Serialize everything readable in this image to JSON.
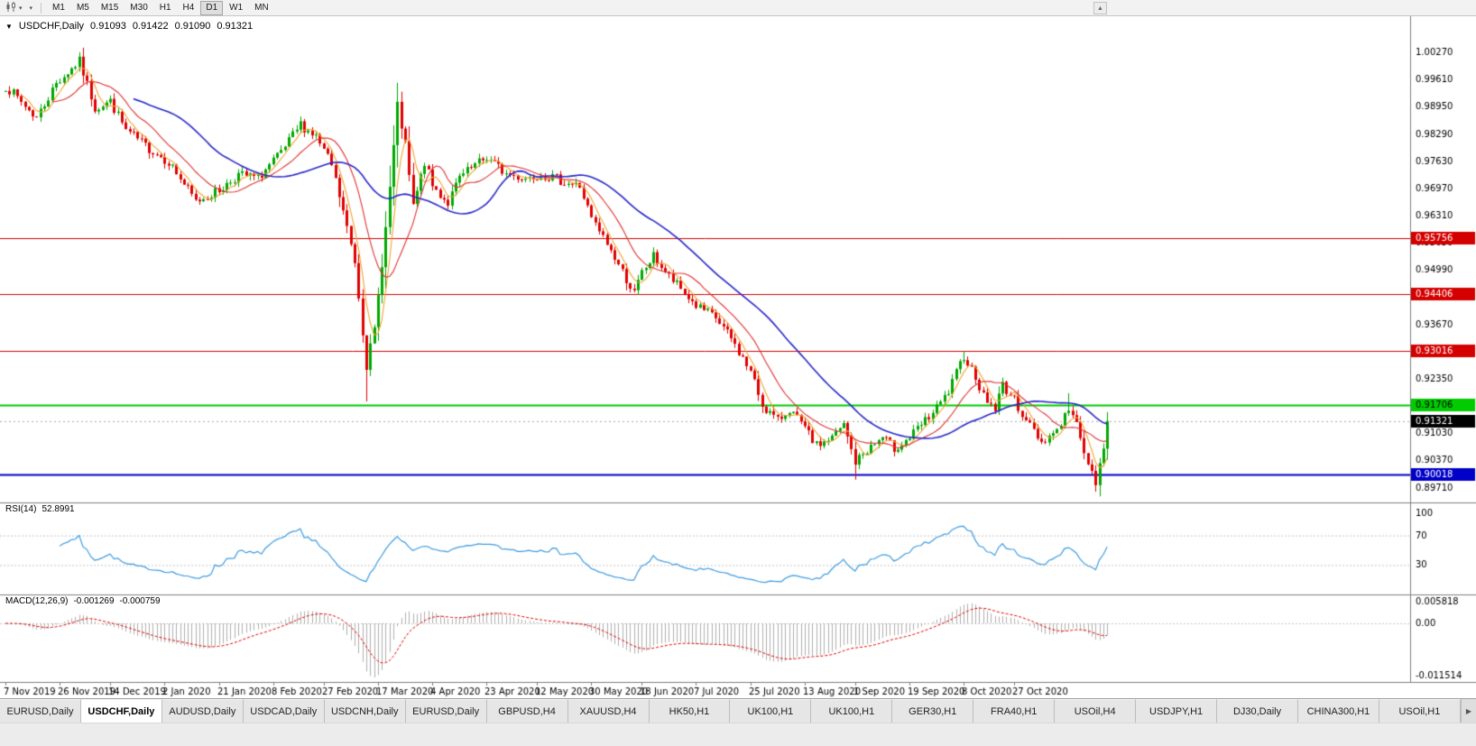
{
  "toolbar": {
    "timeframes": [
      {
        "label": "M1",
        "active": false
      },
      {
        "label": "M5",
        "active": false
      },
      {
        "label": "M15",
        "active": false
      },
      {
        "label": "M30",
        "active": false
      },
      {
        "label": "H1",
        "active": false
      },
      {
        "label": "H4",
        "active": false
      },
      {
        "label": "D1",
        "active": true
      },
      {
        "label": "W1",
        "active": false
      },
      {
        "label": "MN",
        "active": false
      }
    ]
  },
  "icons": {
    "symbol_dropdown": "▼",
    "toolbar_dropdown": "▾",
    "scroll_up": "▲",
    "tab_scroll_right": "▶"
  },
  "header": {
    "symbol": "USDCHF,Daily",
    "open": "0.91093",
    "high": "0.91422",
    "low": "0.91090",
    "close": "0.91321"
  },
  "indicators": {
    "rsi": {
      "name": "RSI(14)",
      "value": "52.8991",
      "levels": [
        "100",
        "70",
        "30"
      ]
    },
    "macd": {
      "name": "MACD(12,26,9)",
      "value_main": "-0.001269",
      "value_signal": "-0.000759",
      "scale": [
        "0.005818",
        "0.00",
        "-0.011514"
      ]
    }
  },
  "tabs": [
    {
      "label": "EURUSD,Daily",
      "active": false
    },
    {
      "label": "USDCHF,Daily",
      "active": true
    },
    {
      "label": "AUDUSD,Daily",
      "active": false
    },
    {
      "label": "USDCAD,Daily",
      "active": false
    },
    {
      "label": "USDCNH,Daily",
      "active": false
    },
    {
      "label": "EURUSD,Daily",
      "active": false
    },
    {
      "label": "GBPUSD,H4",
      "active": false
    },
    {
      "label": "XAUUSD,H4",
      "active": false
    },
    {
      "label": "HK50,H1",
      "active": false
    },
    {
      "label": "UK100,H1",
      "active": false
    },
    {
      "label": "UK100,H1",
      "active": false
    },
    {
      "label": "GER30,H1",
      "active": false
    },
    {
      "label": "FRA40,H1",
      "active": false
    },
    {
      "label": "USOil,H4",
      "active": false
    },
    {
      "label": "USDJPY,H1",
      "active": false
    },
    {
      "label": "DJ30,Daily",
      "active": false
    },
    {
      "label": "CHINA300,H1",
      "active": false
    },
    {
      "label": "USOil,H1",
      "active": false
    }
  ],
  "chart_data": {
    "type": "candlestick",
    "symbol": "USDCHF",
    "timeframe": "Daily",
    "candle_count": 285,
    "candle_spacing": 4.3,
    "first_candle_x": 6,
    "seed": 7,
    "noise": 0.0024,
    "min_range": 0.0012,
    "last_close": 0.91321,
    "ylim": [
      0.89348,
      1.01146
    ],
    "price_axis": [
      "1.00270",
      "0.99610",
      "0.98950",
      "0.98290",
      "0.97630",
      "0.96970",
      "0.96310",
      "0.95650",
      "0.94990",
      "0.94330",
      "0.93670",
      "0.93010",
      "0.92350",
      "0.91690",
      "0.91030",
      "0.90370",
      "0.89710"
    ],
    "anchors": [
      [
        0,
        0.9945
      ],
      [
        8,
        0.9868
      ],
      [
        13,
        0.9952
      ],
      [
        19,
        1.0005
      ],
      [
        23,
        0.9892
      ],
      [
        27,
        0.9908
      ],
      [
        31,
        0.9838
      ],
      [
        36,
        0.98
      ],
      [
        42,
        0.9762
      ],
      [
        49,
        0.9665
      ],
      [
        55,
        0.9692
      ],
      [
        60,
        0.973
      ],
      [
        65,
        0.9722
      ],
      [
        71,
        0.9782
      ],
      [
        76,
        0.9852
      ],
      [
        80,
        0.9822
      ],
      [
        84,
        0.9752
      ],
      [
        87,
        0.964
      ],
      [
        90,
        0.952
      ],
      [
        93,
        0.9268
      ],
      [
        95,
        0.9352
      ],
      [
        98,
        0.96
      ],
      [
        101,
        0.9895
      ],
      [
        103,
        0.98
      ],
      [
        105,
        0.9652
      ],
      [
        108,
        0.976
      ],
      [
        110,
        0.9702
      ],
      [
        114,
        0.9662
      ],
      [
        117,
        0.9722
      ],
      [
        121,
        0.9752
      ],
      [
        124,
        0.9772
      ],
      [
        129,
        0.9732
      ],
      [
        134,
        0.9722
      ],
      [
        138,
        0.9732
      ],
      [
        143,
        0.9716
      ],
      [
        148,
        0.9702
      ],
      [
        151,
        0.9622
      ],
      [
        155,
        0.9562
      ],
      [
        158,
        0.9512
      ],
      [
        162,
        0.9442
      ],
      [
        164,
        0.9492
      ],
      [
        167,
        0.9532
      ],
      [
        171,
        0.9482
      ],
      [
        174,
        0.9452
      ],
      [
        178,
        0.9412
      ],
      [
        183,
        0.9382
      ],
      [
        187,
        0.9332
      ],
      [
        192,
        0.9252
      ],
      [
        195,
        0.9172
      ],
      [
        199,
        0.9132
      ],
      [
        202,
        0.9162
      ],
      [
        206,
        0.9112
      ],
      [
        209,
        0.9072
      ],
      [
        213,
        0.9092
      ],
      [
        216,
        0.9122
      ],
      [
        219,
        0.9032
      ],
      [
        222,
        0.9062
      ],
      [
        226,
        0.9092
      ],
      [
        229,
        0.9066
      ],
      [
        233,
        0.9092
      ],
      [
        236,
        0.9122
      ],
      [
        240,
        0.9162
      ],
      [
        243,
        0.9202
      ],
      [
        247,
        0.9292
      ],
      [
        250,
        0.9242
      ],
      [
        252,
        0.9192
      ],
      [
        255,
        0.9162
      ],
      [
        257,
        0.9222
      ],
      [
        260,
        0.9182
      ],
      [
        264,
        0.9122
      ],
      [
        267,
        0.9082
      ],
      [
        271,
        0.9112
      ],
      [
        274,
        0.9162
      ],
      [
        277,
        0.9102
      ],
      [
        279,
        0.9022
      ],
      [
        281,
        0.8982
      ],
      [
        283,
        0.9062
      ],
      [
        284,
        0.91321
      ]
    ],
    "wick_marks": [
      [
        19,
        1.0027
      ],
      [
        93,
        0.918
      ],
      [
        101,
        0.993
      ],
      [
        219,
        0.899
      ],
      [
        247,
        0.9302
      ],
      [
        274,
        0.92
      ],
      [
        281,
        0.8961
      ]
    ],
    "hlines": [
      {
        "value": 0.95756,
        "label": "0.95756",
        "color": "#d40000",
        "line_width": 1,
        "badge_text_color": "#ffffff"
      },
      {
        "value": 0.94406,
        "label": "0.94406",
        "color": "#d40000",
        "line_width": 1,
        "badge_text_color": "#ffffff"
      },
      {
        "value": 0.93016,
        "label": "0.93016",
        "color": "#d40000",
        "line_width": 1,
        "badge_text_color": "#ffffff"
      },
      {
        "value": 0.91706,
        "label": "0.91706",
        "color": "#00cc00",
        "line_width": 2,
        "badge_text_color": "#000000"
      },
      {
        "value": 0.90018,
        "label": "0.90018",
        "color": "#0000c8",
        "line_width": 2,
        "badge_text_color": "#ffffff"
      }
    ],
    "current_price": {
      "value": 0.91321,
      "label": "0.91321",
      "badge_color": "#000000",
      "badge_text_color": "#ffffff"
    },
    "moving_averages": [
      {
        "period": 5,
        "color": "#f0a432",
        "width": 1.1
      },
      {
        "period": 13,
        "color": "#e03232",
        "width": 1.1
      },
      {
        "period": 34,
        "color": "#2828c8",
        "width": 1.6
      }
    ],
    "date_axis": [
      {
        "i": 0,
        "label": "7 Nov 2019"
      },
      {
        "i": 14,
        "label": "26 Nov 2019"
      },
      {
        "i": 27,
        "label": "14 Dec 2019"
      },
      {
        "i": 41,
        "label": "2 Jan 2020"
      },
      {
        "i": 55,
        "label": "21 Jan 2020"
      },
      {
        "i": 69,
        "label": "8 Feb 2020"
      },
      {
        "i": 82,
        "label": "27 Feb 2020"
      },
      {
        "i": 96,
        "label": "17 Mar 2020"
      },
      {
        "i": 110,
        "label": "4 Apr 2020"
      },
      {
        "i": 124,
        "label": "23 Apr 2020"
      },
      {
        "i": 137,
        "label": "12 May 2020"
      },
      {
        "i": 151,
        "label": "30 May 2020"
      },
      {
        "i": 164,
        "label": "18 Jun 2020"
      },
      {
        "i": 178,
        "label": "7 Jul 2020"
      },
      {
        "i": 192,
        "label": "25 Jul 2020"
      },
      {
        "i": 206,
        "label": "13 Aug 2020"
      },
      {
        "i": 219,
        "label": "1 Sep 2020"
      },
      {
        "i": 233,
        "label": "19 Sep 2020"
      },
      {
        "i": 247,
        "label": "8 Oct 2020"
      },
      {
        "i": 260,
        "label": "27 Oct 2020"
      }
    ],
    "colors": {
      "bg": "#ffffff",
      "up": "#00a800",
      "down": "#e00000",
      "axis_text": "#000000",
      "rsi_line": "#3e9bdf",
      "macd_hist": "#b0b0b0",
      "macd_signal": "#e00000",
      "separator": "#7f7f7f",
      "grid_dotted": "#c8c8c8"
    }
  }
}
